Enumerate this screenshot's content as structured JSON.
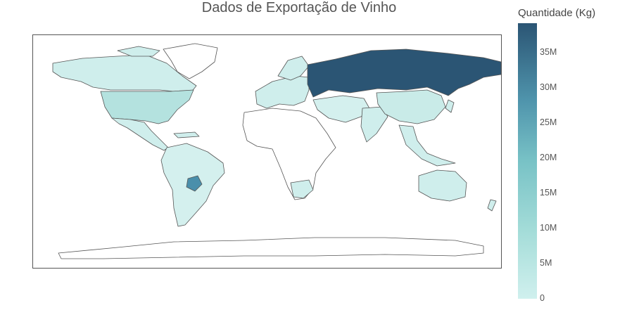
{
  "title": "Dados de Exportação de Vinho",
  "colorbar": {
    "title": "Quantidade (Kg)",
    "ticks": [
      "35M",
      "30M",
      "25M",
      "20M",
      "15M",
      "10M",
      "5M",
      "0"
    ],
    "colors": [
      "#d0f0ee",
      "#a3dcd8",
      "#78c2c6",
      "#4f94ac",
      "#2b5574"
    ]
  },
  "map": {
    "projection": "equirectangular",
    "border_color": "#555555",
    "background_color": "#ffffff",
    "no_data_color": "#ffffff"
  },
  "chart_data": {
    "type": "choropleth",
    "title": "Dados de Exportação de Vinho",
    "colorbar_title": "Quantidade (Kg)",
    "range": [
      0,
      38000000
    ],
    "regions": [
      {
        "name": "Rússia",
        "value": 38000000
      },
      {
        "name": "Paraguai",
        "value": 25000000
      },
      {
        "name": "Estados Unidos",
        "value": 6000000
      },
      {
        "name": "Canadá",
        "value": 3000000
      },
      {
        "name": "China",
        "value": 3000000
      },
      {
        "name": "Brasil",
        "value": 2500000
      },
      {
        "name": "Austrália",
        "value": 2000000
      }
    ]
  }
}
